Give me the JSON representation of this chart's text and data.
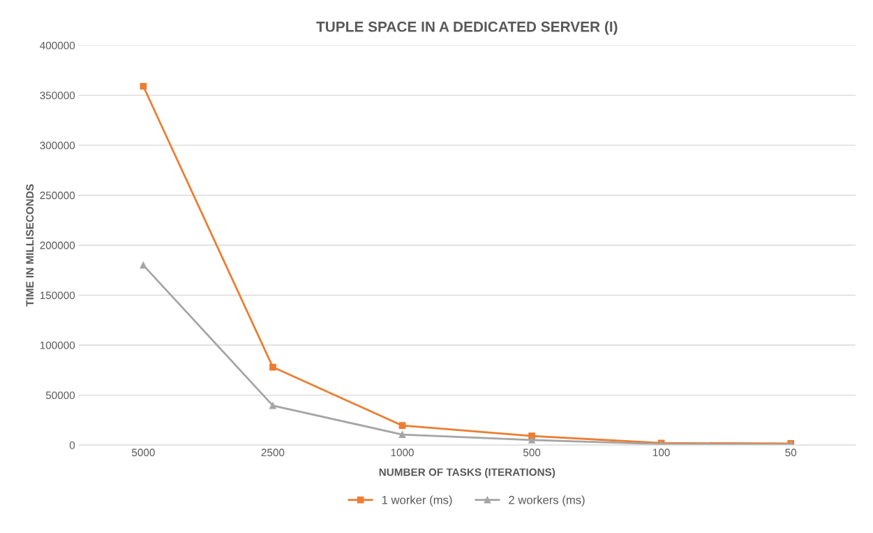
{
  "chart_data": {
    "type": "line",
    "title": "TUPLE SPACE IN A DEDICATED SERVER (I)",
    "xlabel": "NUMBER OF TASKS (ITERATIONS)",
    "ylabel": "TIME IN MILLISECONDS",
    "categories": [
      "5000",
      "2500",
      "1000",
      "500",
      "100",
      "50"
    ],
    "series": [
      {
        "name": "1 worker (ms)",
        "color": "#ed7d31",
        "marker": "square",
        "values": [
          359000,
          78000,
          19500,
          9000,
          2000,
          1500
        ]
      },
      {
        "name": "2 workers (ms)",
        "color": "#a5a5a5",
        "marker": "triangle",
        "values": [
          180000,
          39500,
          10500,
          5000,
          1000,
          500
        ]
      }
    ],
    "ylim": [
      0,
      400000
    ],
    "yticks": [
      0,
      50000,
      100000,
      150000,
      200000,
      250000,
      300000,
      350000,
      400000
    ],
    "grid": "y",
    "legend": "bottom",
    "line_style": "solid"
  }
}
